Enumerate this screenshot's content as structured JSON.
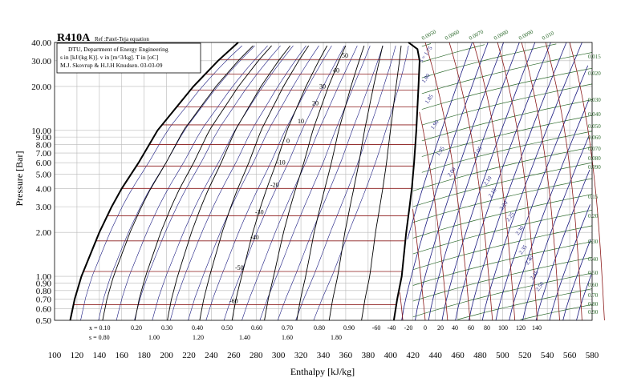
{
  "chart_data": {
    "type": "line",
    "title": "R410A",
    "reference": "Ref :Patel-Teja equation",
    "info_lines": [
      "DTU, Department of Energy Engineering",
      "s in [kJ/(kg K)]. v in [m^3/kg]. T in [oC]",
      "M.J. Skovrup & H.J.H Knudsen. 03-03-09"
    ],
    "xlabel": "Enthalpy [kJ/kg]",
    "ylabel": "Pressure [Bar]",
    "xlim": [
      100,
      580
    ],
    "ylim": [
      0.5,
      40
    ],
    "y_scale": "log",
    "grid": true,
    "x_ticks": [
      100,
      120,
      140,
      160,
      180,
      200,
      220,
      240,
      260,
      280,
      300,
      320,
      340,
      360,
      380,
      400,
      420,
      440,
      460,
      480,
      500,
      520,
      540,
      560,
      580
    ],
    "x_tick_labels": [
      "100",
      "120",
      "140",
      "160",
      "180",
      "200",
      "220",
      "240",
      "260",
      "280",
      "300",
      "320",
      "340",
      "360",
      "380",
      "400",
      "420",
      "440",
      "460",
      "480",
      "500",
      "520",
      "540",
      "560",
      "580"
    ],
    "y_ticks": [
      0.5,
      0.6,
      0.7,
      0.8,
      0.9,
      1.0,
      2.0,
      3.0,
      4.0,
      5.0,
      6.0,
      7.0,
      8.0,
      9.0,
      10.0,
      20.0,
      30.0,
      40.0
    ],
    "y_tick_labels": [
      "0.50",
      "0.60",
      "0.70",
      "0.80",
      "0.90",
      "1.00",
      "2.00",
      "3.00",
      "4.00",
      "5.00",
      "6.00",
      "7.00",
      "8.00",
      "9.00",
      "10.00",
      "20.00",
      "30.00",
      "40.00"
    ],
    "saturation_dome": {
      "liquid": [
        [
          114,
          0.5
        ],
        [
          118,
          0.7
        ],
        [
          124,
          1.0
        ],
        [
          140,
          2.0
        ],
        [
          151,
          3.0
        ],
        [
          160,
          4.0
        ],
        [
          175,
          6.0
        ],
        [
          192,
          10.0
        ],
        [
          224,
          20.0
        ],
        [
          246,
          30.0
        ],
        [
          264,
          40.0
        ]
      ],
      "vapor": [
        [
          403,
          0.5
        ],
        [
          406,
          0.7
        ],
        [
          410,
          1.0
        ],
        [
          414,
          2.0
        ],
        [
          417,
          3.0
        ],
        [
          419,
          4.0
        ],
        [
          421,
          6.0
        ],
        [
          423,
          10.0
        ],
        [
          425,
          20.0
        ],
        [
          426,
          30.0
        ],
        [
          424,
          36.0
        ],
        [
          416,
          40.0
        ]
      ]
    },
    "quality_labels_x": [
      "x = 0.10",
      "0.20",
      "0.30",
      "0.40",
      "0.50",
      "0.60",
      "0.70",
      "0.80",
      "0.90"
    ],
    "entropy_labels_bottom": [
      "s = 0.80",
      "1.00",
      "1.20",
      "1.40",
      "1.60",
      "1.80"
    ],
    "temperature_labels_dome": [
      "50",
      "40",
      "30",
      "20",
      "10",
      "0",
      "-10",
      "-20",
      "-30",
      "-40",
      "-50",
      "-60"
    ],
    "temperature_labels_bottom": [
      "-60",
      "-40",
      "-20",
      "0",
      "20",
      "40",
      "60",
      "80",
      "100",
      "120",
      "140"
    ],
    "entropy_labels_vapor": [
      "s = 1.75",
      "1.80",
      "1.85",
      "1.90",
      "1.95",
      "2.00",
      "2.05",
      "2.10",
      "2.15",
      "2.20",
      "2.25",
      "2.30",
      "2.35",
      "2.40",
      "2.45",
      "2.50"
    ],
    "volume_labels_right": [
      "0.015",
      "0.020",
      "0.030",
      "0.040",
      "0.050",
      "0.060",
      "0.070",
      "0.080",
      "0.090",
      "0.15",
      "0.20",
      "0.30",
      "0.40",
      "0.50",
      "0.60",
      "0.70",
      "0.80",
      "0.90"
    ],
    "volume_labels_top": [
      "0.0050",
      "0.0060",
      "0.0070",
      "0.0080",
      "0.0090",
      "0.010"
    ],
    "colors": {
      "dome": "#000000",
      "isotherm": "#8b1a1a",
      "isentrope": "#1a1a80",
      "isochore": "#2e6b2e",
      "quality": "#000000",
      "grid": "#b8b8b8"
    }
  }
}
